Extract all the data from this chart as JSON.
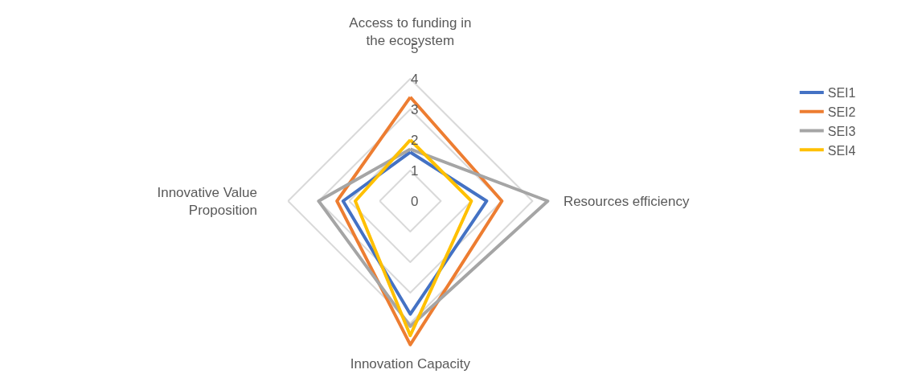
{
  "chart_data": {
    "type": "radar",
    "categories": [
      "Access to funding in the ecosystem",
      "Resources efficiency",
      "Innovation Capacity",
      "Innovative Value Proposition"
    ],
    "series": [
      {
        "name": "SEI1",
        "color": "#4472c4",
        "values": [
          1.6,
          2.5,
          3.7,
          2.2
        ]
      },
      {
        "name": "SEI2",
        "color": "#ed7d31",
        "values": [
          3.4,
          3.0,
          4.7,
          2.4
        ]
      },
      {
        "name": "SEI3",
        "color": "#a5a5a5",
        "values": [
          1.7,
          4.5,
          4.1,
          3.0
        ]
      },
      {
        "name": "SEI4",
        "color": "#ffc000",
        "values": [
          2.0,
          2.0,
          4.4,
          1.8
        ]
      }
    ],
    "ylim": [
      0,
      5
    ],
    "yticks": [
      0,
      1,
      2,
      3,
      4,
      5
    ],
    "grid": true,
    "legend": "right",
    "marker": "none",
    "line_style": "solid"
  }
}
